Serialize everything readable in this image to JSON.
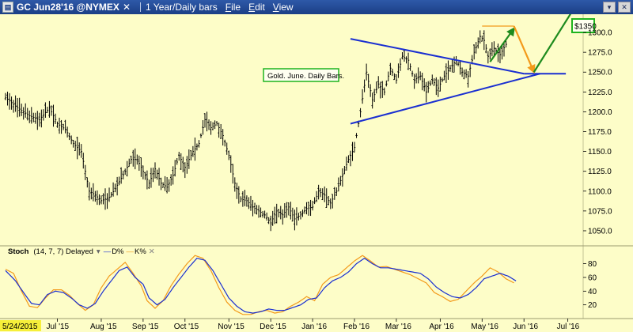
{
  "window": {
    "symbol": "GC Jun28'16 @NYMEX",
    "close_glyph": "✕",
    "period": "1 Year/Daily bars",
    "menu": [
      "File",
      "Edit",
      "View"
    ],
    "app_icon": "chart-app-icon",
    "right_buttons": [
      "pin-icon",
      "close-icon"
    ]
  },
  "chart_data": {
    "type": "ohlc",
    "annotation": "Gold. June. Daily Bars.",
    "target_label": "$1350",
    "y_ticks": [
      1050,
      1075,
      1100,
      1125,
      1150,
      1175,
      1200,
      1225,
      1250,
      1275,
      1300
    ],
    "ylim": [
      1040,
      1315
    ],
    "x_ticks": [
      {
        "label": "5/24/2015",
        "i": 0,
        "highlight": true
      },
      {
        "label": "Jul '15",
        "i": 26
      },
      {
        "label": "Aug '15",
        "i": 48
      },
      {
        "label": "Sep '15",
        "i": 69
      },
      {
        "label": "Oct '15",
        "i": 90
      },
      {
        "label": "Nov '15",
        "i": 112
      },
      {
        "label": "Dec '15",
        "i": 133
      },
      {
        "label": "Jan '16",
        "i": 154
      },
      {
        "label": "Feb '16",
        "i": 175
      },
      {
        "label": "Mar '16",
        "i": 196
      },
      {
        "label": "Apr '16",
        "i": 218
      },
      {
        "label": "May '16",
        "i": 239
      },
      {
        "label": "Jun '16",
        "i": 260
      },
      {
        "label": "Jul '16",
        "i": 282
      }
    ],
    "x_slots": 292,
    "close_anchors": [
      [
        0,
        1218
      ],
      [
        6,
        1205
      ],
      [
        12,
        1195
      ],
      [
        17,
        1190
      ],
      [
        22,
        1205
      ],
      [
        26,
        1185
      ],
      [
        30,
        1178
      ],
      [
        34,
        1160
      ],
      [
        38,
        1150
      ],
      [
        42,
        1100
      ],
      [
        45,
        1095
      ],
      [
        48,
        1088
      ],
      [
        52,
        1092
      ],
      [
        55,
        1103
      ],
      [
        60,
        1125
      ],
      [
        63,
        1140
      ],
      [
        66,
        1140
      ],
      [
        69,
        1125
      ],
      [
        72,
        1110
      ],
      [
        75,
        1128
      ],
      [
        78,
        1110
      ],
      [
        81,
        1105
      ],
      [
        84,
        1120
      ],
      [
        87,
        1145
      ],
      [
        90,
        1130
      ],
      [
        94,
        1150
      ],
      [
        97,
        1160
      ],
      [
        100,
        1190
      ],
      [
        103,
        1180
      ],
      [
        106,
        1185
      ],
      [
        109,
        1170
      ],
      [
        112,
        1145
      ],
      [
        115,
        1110
      ],
      [
        118,
        1090
      ],
      [
        121,
        1088
      ],
      [
        124,
        1080
      ],
      [
        127,
        1075
      ],
      [
        130,
        1070
      ],
      [
        133,
        1060
      ],
      [
        136,
        1075
      ],
      [
        139,
        1070
      ],
      [
        142,
        1080
      ],
      [
        145,
        1065
      ],
      [
        148,
        1070
      ],
      [
        151,
        1078
      ],
      [
        154,
        1080
      ],
      [
        157,
        1100
      ],
      [
        160,
        1095
      ],
      [
        163,
        1085
      ],
      [
        166,
        1100
      ],
      [
        169,
        1120
      ],
      [
        172,
        1140
      ],
      [
        175,
        1155
      ],
      [
        178,
        1200
      ],
      [
        181,
        1250
      ],
      [
        184,
        1215
      ],
      [
        187,
        1235
      ],
      [
        190,
        1225
      ],
      [
        193,
        1255
      ],
      [
        196,
        1240
      ],
      [
        199,
        1270
      ],
      [
        202,
        1265
      ],
      [
        205,
        1240
      ],
      [
        208,
        1245
      ],
      [
        211,
        1225
      ],
      [
        214,
        1240
      ],
      [
        217,
        1230
      ],
      [
        220,
        1245
      ],
      [
        223,
        1255
      ],
      [
        226,
        1265
      ],
      [
        229,
        1250
      ],
      [
        232,
        1245
      ],
      [
        235,
        1275
      ],
      [
        238,
        1295
      ],
      [
        240,
        1290
      ],
      [
        242,
        1270
      ],
      [
        245,
        1280
      ],
      [
        248,
        1272
      ],
      [
        251,
        1285
      ]
    ],
    "trendline_upper": {
      "from": [
        173,
        1292
      ],
      "to": [
        260,
        1248
      ]
    },
    "trendline_lower": {
      "from": [
        173,
        1185
      ],
      "to": [
        268,
        1248
      ]
    },
    "apex_extension": {
      "from": [
        260,
        1248
      ],
      "to": [
        281,
        1248
      ]
    },
    "projection_top": {
      "from": [
        239,
        1308
      ],
      "to": [
        255,
        1308
      ]
    },
    "projection_path": [
      [
        243,
        1263
      ],
      [
        255,
        1305
      ],
      [
        258,
        1308
      ],
      [
        255,
        1308
      ],
      [
        265,
        1250
      ],
      [
        287,
        1338
      ]
    ],
    "stoch": {
      "label": "Stoch",
      "params": "(14, 7, 7) Delayed",
      "d_label": "D%",
      "k_label": "K%",
      "y_ticks": [
        20,
        40,
        60,
        80
      ],
      "ylim": [
        0,
        98
      ],
      "d_anchors": [
        [
          0,
          70
        ],
        [
          5,
          55
        ],
        [
          9,
          38
        ],
        [
          13,
          22
        ],
        [
          17,
          20
        ],
        [
          21,
          35
        ],
        [
          25,
          40
        ],
        [
          29,
          38
        ],
        [
          33,
          30
        ],
        [
          37,
          20
        ],
        [
          41,
          15
        ],
        [
          45,
          22
        ],
        [
          49,
          40
        ],
        [
          53,
          55
        ],
        [
          57,
          70
        ],
        [
          61,
          75
        ],
        [
          65,
          60
        ],
        [
          69,
          50
        ],
        [
          72,
          30
        ],
        [
          76,
          20
        ],
        [
          80,
          28
        ],
        [
          84,
          45
        ],
        [
          88,
          60
        ],
        [
          92,
          75
        ],
        [
          96,
          88
        ],
        [
          100,
          85
        ],
        [
          104,
          70
        ],
        [
          108,
          50
        ],
        [
          112,
          30
        ],
        [
          116,
          18
        ],
        [
          120,
          10
        ],
        [
          124,
          8
        ],
        [
          128,
          10
        ],
        [
          132,
          14
        ],
        [
          136,
          12
        ],
        [
          140,
          12
        ],
        [
          144,
          16
        ],
        [
          148,
          20
        ],
        [
          152,
          28
        ],
        [
          156,
          30
        ],
        [
          160,
          45
        ],
        [
          164,
          55
        ],
        [
          168,
          60
        ],
        [
          172,
          68
        ],
        [
          176,
          80
        ],
        [
          180,
          88
        ],
        [
          184,
          80
        ],
        [
          188,
          74
        ],
        [
          192,
          74
        ],
        [
          196,
          72
        ],
        [
          200,
          70
        ],
        [
          204,
          68
        ],
        [
          208,
          66
        ],
        [
          212,
          58
        ],
        [
          216,
          46
        ],
        [
          220,
          38
        ],
        [
          224,
          32
        ],
        [
          228,
          30
        ],
        [
          232,
          35
        ],
        [
          236,
          45
        ],
        [
          240,
          58
        ],
        [
          244,
          62
        ],
        [
          248,
          66
        ],
        [
          252,
          62
        ],
        [
          256,
          55
        ]
      ],
      "k_anchors": [
        [
          0,
          72
        ],
        [
          4,
          66
        ],
        [
          8,
          40
        ],
        [
          12,
          18
        ],
        [
          16,
          16
        ],
        [
          20,
          30
        ],
        [
          24,
          42
        ],
        [
          28,
          42
        ],
        [
          32,
          34
        ],
        [
          36,
          22
        ],
        [
          40,
          12
        ],
        [
          44,
          20
        ],
        [
          48,
          45
        ],
        [
          52,
          62
        ],
        [
          56,
          72
        ],
        [
          60,
          82
        ],
        [
          64,
          66
        ],
        [
          68,
          48
        ],
        [
          71,
          26
        ],
        [
          75,
          15
        ],
        [
          79,
          26
        ],
        [
          83,
          48
        ],
        [
          87,
          65
        ],
        [
          91,
          80
        ],
        [
          95,
          92
        ],
        [
          99,
          88
        ],
        [
          103,
          70
        ],
        [
          107,
          45
        ],
        [
          111,
          24
        ],
        [
          115,
          12
        ],
        [
          119,
          6
        ],
        [
          123,
          6
        ],
        [
          127,
          10
        ],
        [
          131,
          12
        ],
        [
          135,
          8
        ],
        [
          139,
          10
        ],
        [
          143,
          18
        ],
        [
          147,
          24
        ],
        [
          151,
          32
        ],
        [
          155,
          26
        ],
        [
          159,
          50
        ],
        [
          163,
          60
        ],
        [
          167,
          64
        ],
        [
          171,
          74
        ],
        [
          175,
          84
        ],
        [
          179,
          92
        ],
        [
          183,
          84
        ],
        [
          187,
          75
        ],
        [
          191,
          76
        ],
        [
          195,
          72
        ],
        [
          199,
          68
        ],
        [
          203,
          64
        ],
        [
          207,
          58
        ],
        [
          211,
          52
        ],
        [
          215,
          38
        ],
        [
          219,
          32
        ],
        [
          223,
          25
        ],
        [
          227,
          28
        ],
        [
          231,
          40
        ],
        [
          235,
          52
        ],
        [
          239,
          62
        ],
        [
          243,
          74
        ],
        [
          247,
          68
        ],
        [
          251,
          58
        ],
        [
          255,
          52
        ]
      ]
    },
    "colors": {
      "background": "#fdfdc8",
      "bars": "#000000",
      "trendline": "#1a2fd1",
      "projection": "#f39a1a",
      "arrow_green": "#1e8b1e",
      "box_border": "#1eb41e",
      "d_line": "#1a2fd1",
      "k_line": "#f39a1a",
      "date_highlight": "#f6ef3a"
    }
  }
}
